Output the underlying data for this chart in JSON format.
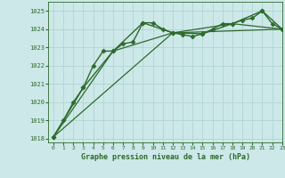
{
  "background_color": "#cde8e8",
  "grid_color": "#b0d4d4",
  "line_color": "#2d6a2d",
  "title": "Graphe pression niveau de la mer (hPa)",
  "xlim": [
    -0.5,
    23
  ],
  "ylim": [
    1017.8,
    1025.5
  ],
  "yticks": [
    1018,
    1019,
    1020,
    1021,
    1022,
    1023,
    1024,
    1025
  ],
  "xticks": [
    0,
    1,
    2,
    3,
    4,
    5,
    6,
    7,
    8,
    9,
    10,
    11,
    12,
    13,
    14,
    15,
    16,
    17,
    18,
    19,
    20,
    21,
    22,
    23
  ],
  "series": [
    {
      "x": [
        0,
        1,
        2,
        3,
        4,
        5,
        6,
        7,
        8,
        9,
        10,
        11,
        12,
        13,
        14,
        15,
        16,
        17,
        18,
        19,
        20,
        21,
        22,
        23
      ],
      "y": [
        1018.1,
        1019.0,
        1020.0,
        1020.8,
        1022.0,
        1022.8,
        1022.8,
        1023.2,
        1023.3,
        1024.35,
        1024.35,
        1024.0,
        1023.8,
        1023.7,
        1023.6,
        1023.75,
        1024.0,
        1024.3,
        1024.3,
        1024.5,
        1024.6,
        1025.0,
        1024.3,
        1024.0
      ],
      "marker": "D",
      "linewidth": 1.0,
      "markersize": 2.5
    },
    {
      "x": [
        0,
        3,
        6,
        9,
        12,
        15,
        18,
        21,
        23
      ],
      "y": [
        1018.1,
        1020.8,
        1022.8,
        1024.35,
        1023.8,
        1023.75,
        1024.3,
        1025.0,
        1024.0
      ],
      "marker": "D",
      "linewidth": 1.0,
      "markersize": 2.5
    },
    {
      "x": [
        0,
        6,
        12,
        18,
        23
      ],
      "y": [
        1018.1,
        1022.8,
        1023.8,
        1024.3,
        1024.0
      ],
      "marker": null,
      "linewidth": 0.9,
      "markersize": 0
    },
    {
      "x": [
        0,
        12,
        23
      ],
      "y": [
        1018.1,
        1023.8,
        1024.0
      ],
      "marker": null,
      "linewidth": 0.9,
      "markersize": 0
    }
  ]
}
